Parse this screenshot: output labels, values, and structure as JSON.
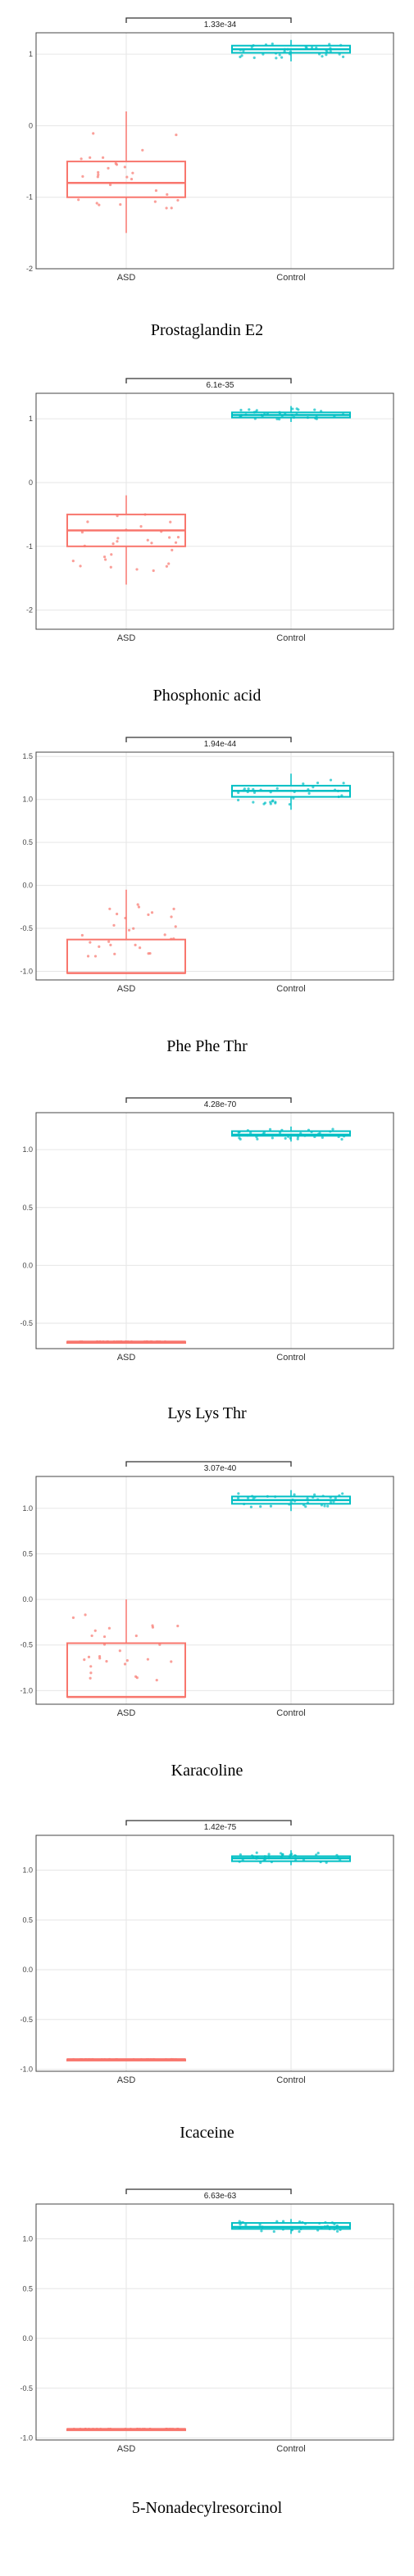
{
  "colors": {
    "asd": "#F8766D",
    "control": "#00BFC4"
  },
  "chart_data": [
    {
      "type": "box",
      "categories": [
        "ASD",
        "Control"
      ],
      "title": "Prostaglandin E2",
      "pvalue": "1.33e-34",
      "ylim": [
        -2,
        1.3
      ],
      "yticks": [
        1,
        0,
        -1,
        -2
      ],
      "ytick_labels": [
        "1",
        "0",
        "-1",
        "-2"
      ],
      "boxes": [
        {
          "group": "ASD",
          "min": -1.5,
          "q1": -1.0,
          "median": -0.8,
          "q3": -0.5,
          "max": 0.2
        },
        {
          "group": "Control",
          "min": 0.9,
          "q1": 1.02,
          "median": 1.07,
          "q3": 1.12,
          "max": 1.2
        }
      ]
    },
    {
      "type": "box",
      "categories": [
        "ASD",
        "Control"
      ],
      "title": "Phosphonic acid",
      "pvalue": "6.1e-35",
      "ylim": [
        -2.3,
        1.4
      ],
      "yticks": [
        1,
        0,
        -1,
        -2
      ],
      "ytick_labels": [
        "1",
        "0",
        "-1",
        "-2"
      ],
      "boxes": [
        {
          "group": "ASD",
          "min": -1.6,
          "q1": -1.0,
          "median": -0.75,
          "q3": -0.5,
          "max": -0.2
        },
        {
          "group": "Control",
          "min": 0.95,
          "q1": 1.02,
          "median": 1.06,
          "q3": 1.1,
          "max": 1.2
        }
      ]
    },
    {
      "type": "box",
      "categories": [
        "ASD",
        "Control"
      ],
      "title": "Phe Phe Thr",
      "pvalue": "1.94e-44",
      "ylim": [
        -1.1,
        1.55
      ],
      "yticks": [
        1.5,
        1.0,
        0.5,
        0.0,
        -0.5,
        -1.0
      ],
      "ytick_labels": [
        "1.5",
        "1.0",
        "0.5",
        "0.0",
        "-0.5",
        "-1.0"
      ],
      "boxes": [
        {
          "group": "ASD",
          "min": -1.03,
          "q1": -1.02,
          "median": -1.02,
          "q3": -0.63,
          "max": -0.05
        },
        {
          "group": "Control",
          "min": 0.88,
          "q1": 1.03,
          "median": 1.1,
          "q3": 1.16,
          "max": 1.3
        }
      ]
    },
    {
      "type": "box",
      "categories": [
        "ASD",
        "Control"
      ],
      "title": "Lys Lys Thr",
      "pvalue": "4.28e-70",
      "ylim": [
        -0.72,
        1.32
      ],
      "yticks": [
        1.0,
        0.5,
        0.0,
        -0.5
      ],
      "ytick_labels": [
        "1.0",
        "0.5",
        "0.0",
        "-0.5"
      ],
      "boxes": [
        {
          "group": "ASD",
          "min": -0.66,
          "q1": -0.66,
          "median": -0.66,
          "q3": -0.66,
          "max": -0.66
        },
        {
          "group": "Control",
          "min": 1.07,
          "q1": 1.12,
          "median": 1.13,
          "q3": 1.16,
          "max": 1.2
        }
      ]
    },
    {
      "type": "box",
      "categories": [
        "ASD",
        "Control"
      ],
      "title": "Karacoline",
      "pvalue": "3.07e-40",
      "ylim": [
        -1.15,
        1.35
      ],
      "yticks": [
        1.0,
        0.5,
        0.0,
        -0.5,
        -1.0
      ],
      "ytick_labels": [
        "1.0",
        "0.5",
        "0.0",
        "-0.5",
        "-1.0"
      ],
      "boxes": [
        {
          "group": "ASD",
          "min": -1.08,
          "q1": -1.07,
          "median": -1.07,
          "q3": -0.48,
          "max": 0.0
        },
        {
          "group": "Control",
          "min": 0.97,
          "q1": 1.05,
          "median": 1.09,
          "q3": 1.13,
          "max": 1.2
        }
      ]
    },
    {
      "type": "box",
      "categories": [
        "ASD",
        "Control"
      ],
      "title": "Icaceine",
      "pvalue": "1.42e-75",
      "ylim": [
        -1.02,
        1.35
      ],
      "yticks": [
        1.0,
        0.5,
        0.0,
        -0.5,
        -1.0
      ],
      "ytick_labels": [
        "1.0",
        "0.5",
        "0.0",
        "-0.5",
        "-1.0"
      ],
      "boxes": [
        {
          "group": "ASD",
          "min": -0.9,
          "q1": -0.9,
          "median": -0.9,
          "q3": -0.9,
          "max": -0.9
        },
        {
          "group": "Control",
          "min": 1.05,
          "q1": 1.09,
          "median": 1.12,
          "q3": 1.14,
          "max": 1.2
        }
      ]
    },
    {
      "type": "box",
      "categories": [
        "ASD",
        "Control"
      ],
      "title": "5-Nonadecylresorcinol",
      "pvalue": "6.63e-63",
      "ylim": [
        -1.02,
        1.35
      ],
      "yticks": [
        1.0,
        0.5,
        0.0,
        -0.5,
        -1.0
      ],
      "ytick_labels": [
        "1.0",
        "0.5",
        "0.0",
        "-0.5",
        "-1.0"
      ],
      "boxes": [
        {
          "group": "ASD",
          "min": -0.91,
          "q1": -0.91,
          "median": -0.91,
          "q3": -0.91,
          "max": -0.91
        },
        {
          "group": "Control",
          "min": 1.05,
          "q1": 1.1,
          "median": 1.12,
          "q3": 1.16,
          "max": 1.2
        }
      ]
    }
  ]
}
